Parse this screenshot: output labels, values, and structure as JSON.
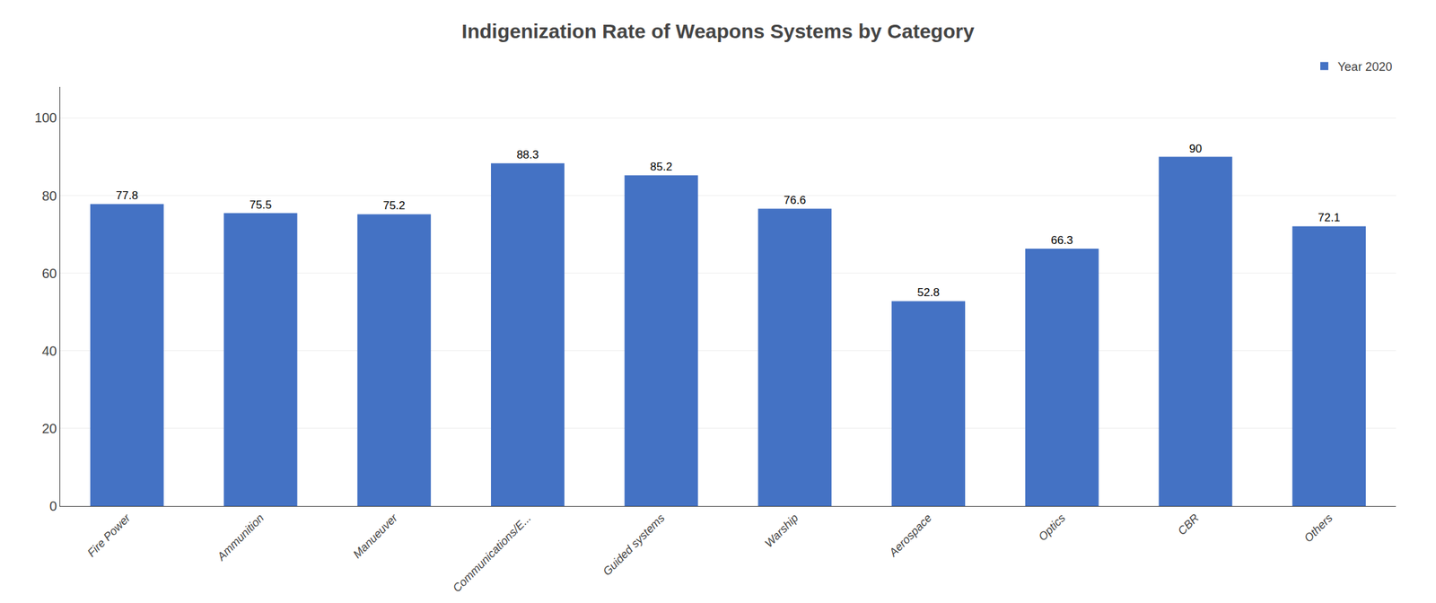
{
  "chart_data": {
    "type": "bar",
    "title": "Indigenization Rate of Weapons Systems by Category",
    "categories": [
      "Fire Power",
      "Ammunition",
      "Manueuver",
      "Communications/E...",
      "Guided systems",
      "Warship",
      "Aerospace",
      "Optics",
      "CBR",
      "Others"
    ],
    "series": [
      {
        "name": "Year 2020",
        "color": "#4472C4",
        "values": [
          77.8,
          75.5,
          75.2,
          88.3,
          85.2,
          76.6,
          52.8,
          66.3,
          90,
          72.1
        ]
      }
    ],
    "ylim": [
      0,
      108
    ],
    "yticks": [
      0,
      20,
      40,
      60,
      80,
      100
    ],
    "grid": true,
    "legend": "upper right",
    "data_labels": true
  }
}
